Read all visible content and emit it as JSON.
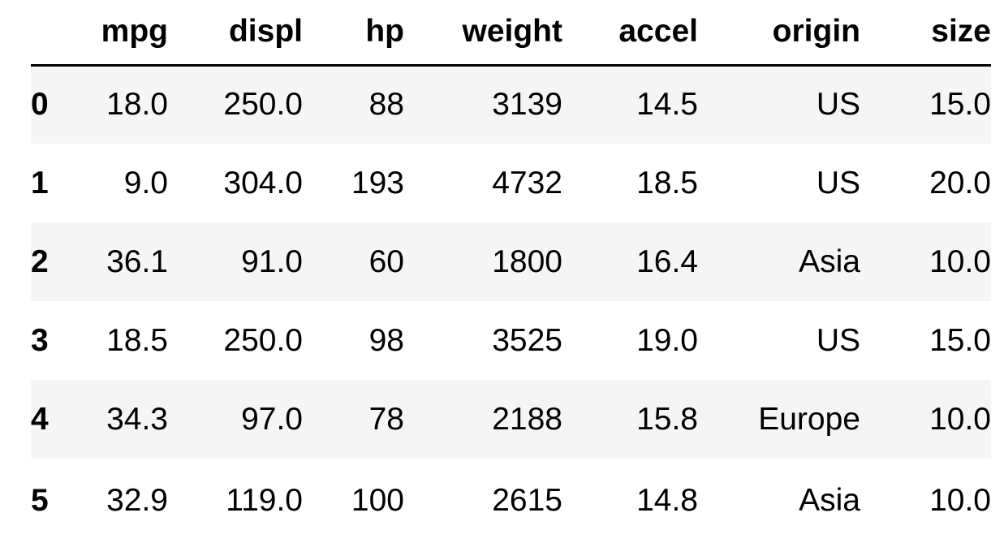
{
  "table": {
    "columns": [
      "mpg",
      "displ",
      "hp",
      "weight",
      "accel",
      "origin",
      "size"
    ],
    "rows": [
      {
        "index": "0",
        "mpg": "18.0",
        "displ": "250.0",
        "hp": "88",
        "weight": "3139",
        "accel": "14.5",
        "origin": "US",
        "size": "15.0"
      },
      {
        "index": "1",
        "mpg": "9.0",
        "displ": "304.0",
        "hp": "193",
        "weight": "4732",
        "accel": "18.5",
        "origin": "US",
        "size": "20.0"
      },
      {
        "index": "2",
        "mpg": "36.1",
        "displ": "91.0",
        "hp": "60",
        "weight": "1800",
        "accel": "16.4",
        "origin": "Asia",
        "size": "10.0"
      },
      {
        "index": "3",
        "mpg": "18.5",
        "displ": "250.0",
        "hp": "98",
        "weight": "3525",
        "accel": "19.0",
        "origin": "US",
        "size": "15.0"
      },
      {
        "index": "4",
        "mpg": "34.3",
        "displ": "97.0",
        "hp": "78",
        "weight": "2188",
        "accel": "15.8",
        "origin": "Europe",
        "size": "10.0"
      },
      {
        "index": "5",
        "mpg": "32.9",
        "displ": "119.0",
        "hp": "100",
        "weight": "2615",
        "accel": "14.8",
        "origin": "Asia",
        "size": "10.0"
      }
    ]
  }
}
